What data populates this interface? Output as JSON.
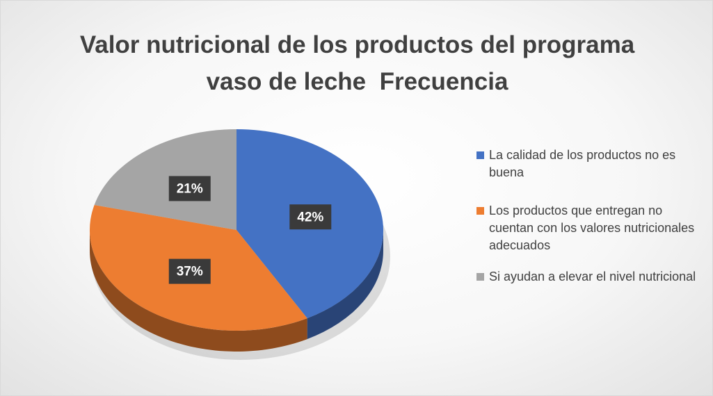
{
  "chart_data": {
    "type": "pie",
    "title": "Valor nutricional de los productos del programa vaso de leche  Frecuencia",
    "categories": [
      "La calidad de los productos no es buena",
      "Los productos que entregan no cuentan con los valores nutricionales adecuados",
      "Si ayudan a elevar el nivel nutricional"
    ],
    "values": [
      42,
      37,
      21
    ],
    "value_labels": [
      "42%",
      "37%",
      "21%"
    ],
    "colors": [
      "#4472c4",
      "#ed7d31",
      "#a5a5a5"
    ],
    "legend": "right"
  }
}
